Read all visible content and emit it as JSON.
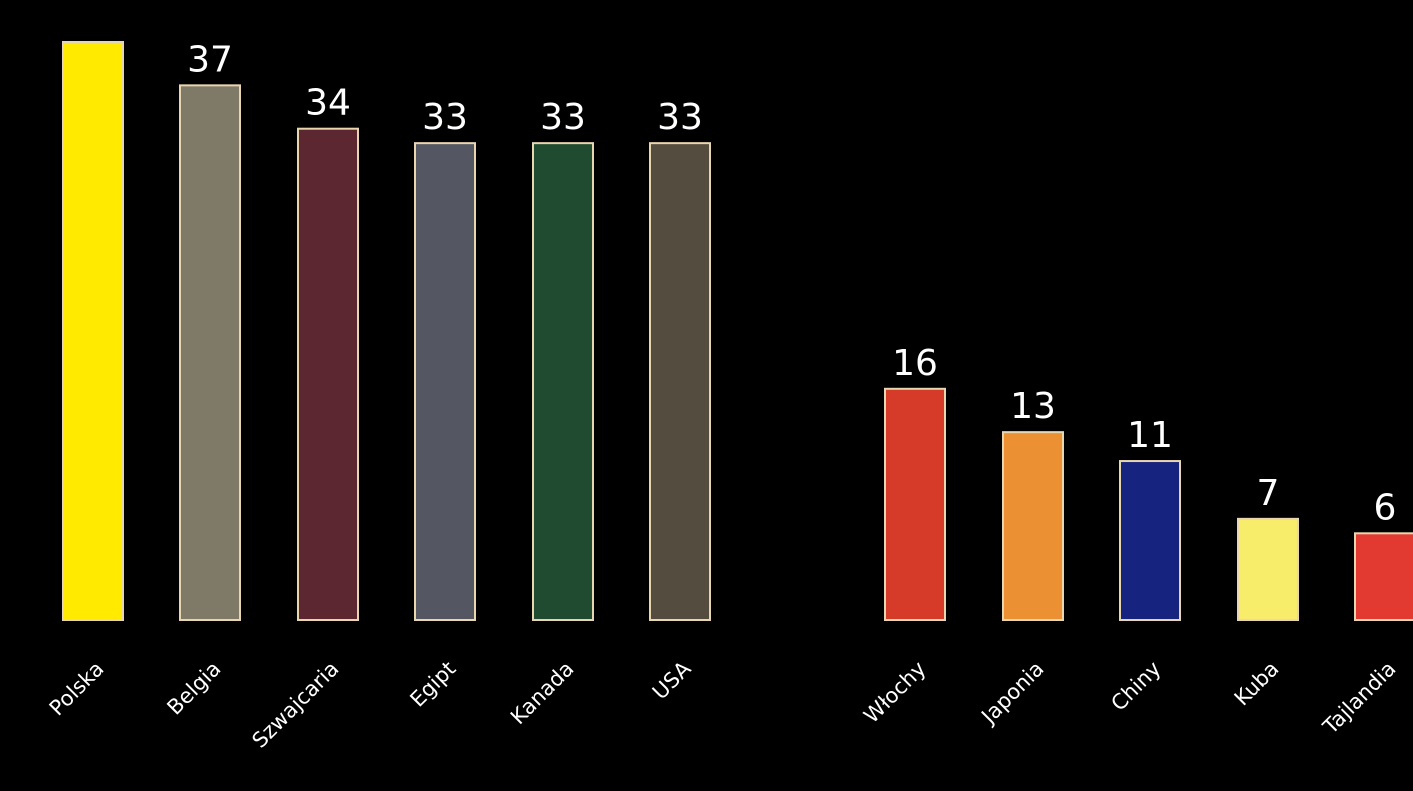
{
  "chart_data": {
    "type": "bar",
    "title": "",
    "xlabel": "",
    "ylabel": "",
    "ylim": [
      0,
      40
    ],
    "grid": false,
    "legend": "none",
    "background": "#000000",
    "bar_outline_color": "#e8d6b0",
    "label_color": "#ffffff",
    "categories": [
      "Polska",
      "Belgia",
      "Szwajcaria",
      "Egipt",
      "Kanada",
      "USA",
      "Włochy",
      "Japonia",
      "Chiny",
      "Kuba",
      "Tajlandia"
    ],
    "values": [
      40,
      37,
      34,
      33,
      33,
      33,
      16,
      13,
      11,
      7,
      6
    ],
    "data_labels": [
      "",
      "37",
      "34",
      "33",
      "33",
      "33",
      "16",
      "13",
      "11",
      "7",
      "6"
    ],
    "colors": [
      "#ffea00",
      "#7f7968",
      "#5c2731",
      "#545662",
      "#214b30",
      "#544c3f",
      "#d63a29",
      "#ec9133",
      "#17247f",
      "#f8ec6b",
      "#e23a30"
    ]
  }
}
